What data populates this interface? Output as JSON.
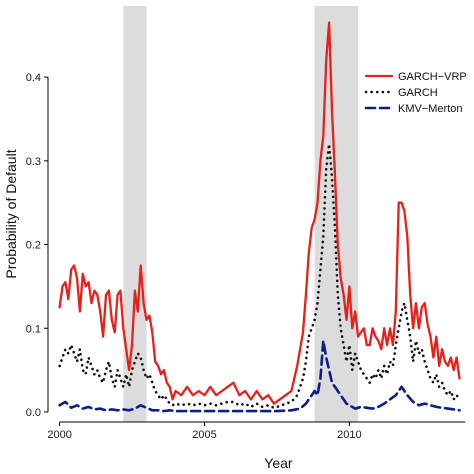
{
  "chart_data": {
    "type": "line",
    "title": "",
    "xlabel": "Year",
    "ylabel": "Probability of Default",
    "xlim": [
      1999.6,
      2014.3
    ],
    "ylim": [
      -0.012,
      0.485
    ],
    "x_ticks": [
      2000,
      2005,
      2010
    ],
    "x_tick_labels": [
      "2000",
      "2005",
      "2010"
    ],
    "y_ticks": [
      0.0,
      0.1,
      0.2,
      0.3,
      0.4
    ],
    "y_tick_labels": [
      "0.0",
      "0.1",
      "0.2",
      "0.3",
      "0.4"
    ],
    "grid": false,
    "legend_position": "top-right",
    "shaded_periods": [
      {
        "start": 2002.2,
        "end": 2003.0
      },
      {
        "start": 2008.8,
        "end": 2010.3
      }
    ],
    "shade_color": "#dcdcdc",
    "series": [
      {
        "name": "GARCH−VRP",
        "color": "#e8201b",
        "style": "solid",
        "x": [
          2000.0,
          2000.1,
          2000.2,
          2000.3,
          2000.4,
          2000.5,
          2000.6,
          2000.7,
          2000.8,
          2000.9,
          2001.0,
          2001.1,
          2001.2,
          2001.3,
          2001.4,
          2001.5,
          2001.6,
          2001.7,
          2001.8,
          2001.9,
          2002.0,
          2002.1,
          2002.2,
          2002.3,
          2002.4,
          2002.5,
          2002.6,
          2002.7,
          2002.8,
          2002.9,
          2003.0,
          2003.1,
          2003.2,
          2003.3,
          2003.4,
          2003.5,
          2003.6,
          2003.7,
          2003.8,
          2003.9,
          2004.0,
          2004.2,
          2004.4,
          2004.6,
          2004.8,
          2005.0,
          2005.2,
          2005.4,
          2005.6,
          2005.8,
          2006.0,
          2006.2,
          2006.4,
          2006.6,
          2006.8,
          2007.0,
          2007.2,
          2007.4,
          2007.6,
          2007.8,
          2008.0,
          2008.2,
          2008.4,
          2008.5,
          2008.6,
          2008.7,
          2008.8,
          2008.9,
          2009.0,
          2009.1,
          2009.2,
          2009.3,
          2009.4,
          2009.5,
          2009.6,
          2009.7,
          2009.8,
          2009.9,
          2010.0,
          2010.1,
          2010.2,
          2010.3,
          2010.4,
          2010.5,
          2010.6,
          2010.7,
          2010.8,
          2010.9,
          2011.0,
          2011.1,
          2011.2,
          2011.3,
          2011.4,
          2011.5,
          2011.6,
          2011.7,
          2011.8,
          2011.9,
          2012.0,
          2012.1,
          2012.2,
          2012.3,
          2012.4,
          2012.5,
          2012.6,
          2012.7,
          2012.8,
          2012.9,
          2013.0,
          2013.1,
          2013.2,
          2013.3,
          2013.4,
          2013.5,
          2013.6,
          2013.7,
          2013.8
        ],
        "values": [
          0.125,
          0.15,
          0.155,
          0.135,
          0.17,
          0.175,
          0.16,
          0.12,
          0.165,
          0.15,
          0.155,
          0.13,
          0.145,
          0.14,
          0.12,
          0.09,
          0.14,
          0.145,
          0.11,
          0.095,
          0.14,
          0.145,
          0.1,
          0.075,
          0.05,
          0.08,
          0.145,
          0.12,
          0.175,
          0.13,
          0.11,
          0.115,
          0.095,
          0.06,
          0.055,
          0.045,
          0.05,
          0.035,
          0.03,
          0.015,
          0.025,
          0.02,
          0.03,
          0.02,
          0.025,
          0.02,
          0.03,
          0.02,
          0.025,
          0.03,
          0.035,
          0.02,
          0.025,
          0.015,
          0.025,
          0.015,
          0.02,
          0.01,
          0.015,
          0.02,
          0.025,
          0.055,
          0.095,
          0.14,
          0.19,
          0.22,
          0.23,
          0.25,
          0.3,
          0.33,
          0.42,
          0.465,
          0.36,
          0.285,
          0.2,
          0.16,
          0.14,
          0.11,
          0.15,
          0.1,
          0.12,
          0.09,
          0.095,
          0.1,
          0.08,
          0.08,
          0.1,
          0.09,
          0.085,
          0.075,
          0.1,
          0.08,
          0.1,
          0.08,
          0.12,
          0.25,
          0.25,
          0.24,
          0.21,
          0.14,
          0.1,
          0.13,
          0.1,
          0.125,
          0.13,
          0.105,
          0.09,
          0.065,
          0.09,
          0.055,
          0.075,
          0.06,
          0.055,
          0.065,
          0.05,
          0.065,
          0.04
        ]
      },
      {
        "name": "GARCH",
        "color": "#111111",
        "style": "dotted",
        "x": [
          2000.0,
          2000.1,
          2000.2,
          2000.3,
          2000.4,
          2000.5,
          2000.6,
          2000.7,
          2000.8,
          2000.9,
          2001.0,
          2001.1,
          2001.2,
          2001.3,
          2001.4,
          2001.5,
          2001.6,
          2001.7,
          2001.8,
          2001.9,
          2002.0,
          2002.1,
          2002.2,
          2002.3,
          2002.4,
          2002.5,
          2002.6,
          2002.7,
          2002.8,
          2002.9,
          2003.0,
          2003.1,
          2003.2,
          2003.3,
          2003.4,
          2003.5,
          2003.6,
          2003.7,
          2003.8,
          2003.9,
          2004.0,
          2004.2,
          2004.4,
          2004.6,
          2004.8,
          2005.0,
          2005.2,
          2005.4,
          2005.6,
          2005.8,
          2006.0,
          2006.2,
          2006.4,
          2006.6,
          2006.8,
          2007.0,
          2007.2,
          2007.4,
          2007.6,
          2007.8,
          2008.0,
          2008.2,
          2008.4,
          2008.5,
          2008.6,
          2008.7,
          2008.8,
          2008.9,
          2009.0,
          2009.1,
          2009.2,
          2009.3,
          2009.4,
          2009.5,
          2009.6,
          2009.7,
          2009.8,
          2009.9,
          2010.0,
          2010.1,
          2010.2,
          2010.3,
          2010.4,
          2010.5,
          2010.6,
          2010.7,
          2010.8,
          2010.9,
          2011.0,
          2011.1,
          2011.2,
          2011.3,
          2011.4,
          2011.5,
          2011.6,
          2011.7,
          2011.8,
          2011.9,
          2012.0,
          2012.1,
          2012.2,
          2012.3,
          2012.4,
          2012.5,
          2012.6,
          2012.7,
          2012.8,
          2012.9,
          2013.0,
          2013.1,
          2013.2,
          2013.3,
          2013.4,
          2013.5,
          2013.6,
          2013.7,
          2013.8
        ],
        "values": [
          0.055,
          0.065,
          0.075,
          0.07,
          0.08,
          0.07,
          0.06,
          0.075,
          0.05,
          0.045,
          0.065,
          0.055,
          0.045,
          0.05,
          0.04,
          0.035,
          0.05,
          0.06,
          0.04,
          0.03,
          0.05,
          0.04,
          0.03,
          0.045,
          0.03,
          0.05,
          0.06,
          0.07,
          0.065,
          0.05,
          0.04,
          0.045,
          0.035,
          0.025,
          0.02,
          0.015,
          0.02,
          0.015,
          0.01,
          0.008,
          0.01,
          0.008,
          0.01,
          0.008,
          0.01,
          0.008,
          0.01,
          0.008,
          0.01,
          0.012,
          0.012,
          0.008,
          0.01,
          0.006,
          0.01,
          0.006,
          0.008,
          0.005,
          0.007,
          0.01,
          0.012,
          0.02,
          0.04,
          0.06,
          0.09,
          0.1,
          0.11,
          0.13,
          0.17,
          0.21,
          0.29,
          0.32,
          0.28,
          0.22,
          0.14,
          0.1,
          0.08,
          0.06,
          0.08,
          0.05,
          0.07,
          0.06,
          0.05,
          0.045,
          0.04,
          0.035,
          0.045,
          0.04,
          0.05,
          0.04,
          0.055,
          0.045,
          0.06,
          0.055,
          0.08,
          0.1,
          0.12,
          0.13,
          0.11,
          0.09,
          0.06,
          0.085,
          0.07,
          0.075,
          0.06,
          0.05,
          0.04,
          0.035,
          0.045,
          0.03,
          0.035,
          0.025,
          0.02,
          0.025,
          0.015,
          0.02,
          0.015
        ]
      },
      {
        "name": "KMV−Merton",
        "color": "#0b1f8a",
        "style": "dashed",
        "x": [
          2000.0,
          2000.2,
          2000.4,
          2000.6,
          2000.8,
          2001.0,
          2001.2,
          2001.4,
          2001.6,
          2001.8,
          2002.0,
          2002.2,
          2002.4,
          2002.6,
          2002.8,
          2003.0,
          2003.2,
          2003.4,
          2003.6,
          2003.8,
          2004.0,
          2004.5,
          2005.0,
          2005.5,
          2006.0,
          2006.5,
          2007.0,
          2007.5,
          2008.0,
          2008.3,
          2008.5,
          2008.7,
          2008.8,
          2008.9,
          2009.0,
          2009.1,
          2009.2,
          2009.3,
          2009.4,
          2009.5,
          2009.6,
          2009.7,
          2009.8,
          2009.9,
          2010.0,
          2010.2,
          2010.4,
          2010.6,
          2010.8,
          2011.0,
          2011.2,
          2011.4,
          2011.6,
          2011.7,
          2011.8,
          2011.9,
          2012.0,
          2012.2,
          2012.4,
          2012.6,
          2012.8,
          2013.0,
          2013.2,
          2013.4,
          2013.6,
          2013.8
        ],
        "values": [
          0.008,
          0.012,
          0.005,
          0.008,
          0.004,
          0.006,
          0.003,
          0.004,
          0.002,
          0.003,
          0.002,
          0.003,
          0.002,
          0.004,
          0.008,
          0.005,
          0.002,
          0.002,
          0.001,
          0.002,
          0.001,
          0.001,
          0.001,
          0.001,
          0.001,
          0.001,
          0.001,
          0.001,
          0.002,
          0.004,
          0.01,
          0.02,
          0.025,
          0.02,
          0.04,
          0.085,
          0.065,
          0.05,
          0.035,
          0.03,
          0.025,
          0.02,
          0.015,
          0.01,
          0.008,
          0.004,
          0.006,
          0.005,
          0.004,
          0.006,
          0.01,
          0.015,
          0.02,
          0.025,
          0.03,
          0.025,
          0.02,
          0.012,
          0.008,
          0.01,
          0.008,
          0.006,
          0.005,
          0.004,
          0.003,
          0.002
        ]
      }
    ]
  }
}
